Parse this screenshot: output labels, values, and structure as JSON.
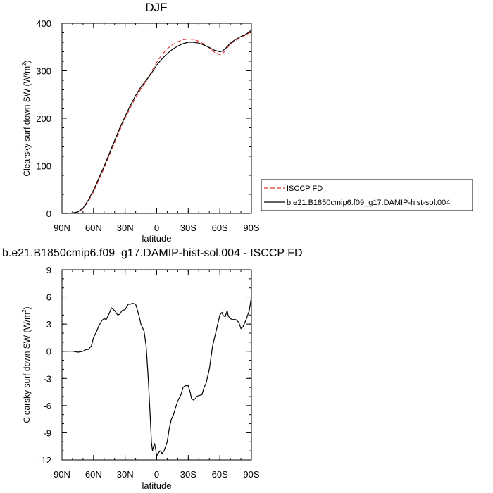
{
  "chart_data": [
    {
      "type": "line",
      "title": "DJF",
      "xlabel": "latitude",
      "ylabel": "Clearsky surf down SW (W/m",
      "ylabel_sup": "2",
      "ylabel_close": ")",
      "xlim": [
        -90,
        90
      ],
      "ylim": [
        0,
        400
      ],
      "x_ticks": [
        {
          "value": -90,
          "label": "90N"
        },
        {
          "value": -60,
          "label": "60N"
        },
        {
          "value": -30,
          "label": "30N"
        },
        {
          "value": 0,
          "label": "0"
        },
        {
          "value": 30,
          "label": "30S"
        },
        {
          "value": 60,
          "label": "60S"
        },
        {
          "value": 90,
          "label": "90S"
        }
      ],
      "y_ticks": [
        {
          "value": 0,
          "label": "0"
        },
        {
          "value": 100,
          "label": "100"
        },
        {
          "value": 200,
          "label": "200"
        },
        {
          "value": 300,
          "label": "300"
        },
        {
          "value": 400,
          "label": "400"
        }
      ],
      "grid": false,
      "legend_position": "right",
      "series": [
        {
          "name": "ISCCP FD",
          "color": "#e03030",
          "dash": true,
          "x": [
            -90,
            -85,
            -80,
            -75,
            -70,
            -65,
            -60,
            -55,
            -50,
            -45,
            -40,
            -35,
            -30,
            -25,
            -20,
            -15,
            -10,
            -5,
            0,
            5,
            10,
            15,
            20,
            25,
            30,
            35,
            40,
            45,
            50,
            55,
            60,
            62,
            65,
            70,
            75,
            80,
            85,
            88,
            90
          ],
          "y": [
            0,
            0,
            1,
            3,
            10,
            25,
            45,
            70,
            95,
            122,
            148,
            175,
            200,
            222,
            243,
            262,
            278,
            298,
            318,
            334,
            346,
            355,
            361,
            365,
            367,
            366,
            362,
            356,
            348,
            339,
            334,
            335,
            342,
            356,
            364,
            369,
            376,
            380,
            382
          ]
        },
        {
          "name": "b.e21.B1850cmip6.f09_g17.DAMIP-hist-sol.004",
          "color": "#000000",
          "dash": false,
          "x": [
            -90,
            -85,
            -80,
            -75,
            -70,
            -65,
            -60,
            -55,
            -50,
            -45,
            -40,
            -35,
            -30,
            -25,
            -20,
            -15,
            -10,
            -5,
            0,
            5,
            10,
            15,
            20,
            25,
            30,
            35,
            40,
            45,
            50,
            55,
            60,
            62,
            65,
            70,
            75,
            80,
            85,
            88,
            90
          ],
          "y": [
            0,
            0,
            1,
            3,
            11,
            28,
            49,
            74,
            99,
            126,
            153,
            180,
            204,
            227,
            248,
            266,
            280,
            295,
            312,
            325,
            336,
            345,
            352,
            357,
            360,
            360,
            358,
            354,
            349,
            343,
            340,
            341,
            346,
            358,
            366,
            372,
            377,
            382,
            386
          ]
        }
      ]
    },
    {
      "type": "line",
      "title": "b.e21.B1850cmip6.f09_g17.DAMIP-hist-sol.004 - ISCCP FD",
      "xlabel": "latitude",
      "ylabel": "Clearsky surf down SW (W/m",
      "ylabel_sup": "2",
      "ylabel_close": ")",
      "xlim": [
        -90,
        90
      ],
      "ylim": [
        -12,
        9
      ],
      "x_ticks": [
        {
          "value": -90,
          "label": "90N"
        },
        {
          "value": -60,
          "label": "60N"
        },
        {
          "value": -30,
          "label": "30N"
        },
        {
          "value": 0,
          "label": "0"
        },
        {
          "value": 30,
          "label": "30S"
        },
        {
          "value": 60,
          "label": "60S"
        },
        {
          "value": 90,
          "label": "90S"
        }
      ],
      "y_ticks": [
        {
          "value": -12,
          "label": "-12"
        },
        {
          "value": -9,
          "label": "-9"
        },
        {
          "value": -6,
          "label": "-6"
        },
        {
          "value": -3,
          "label": "-3"
        },
        {
          "value": 0,
          "label": "0"
        },
        {
          "value": 3,
          "label": "3"
        },
        {
          "value": 6,
          "label": "6"
        },
        {
          "value": 9,
          "label": "9"
        }
      ],
      "grid": false,
      "series": [
        {
          "color": "#000000",
          "dash": false,
          "x": [
            -90,
            -85,
            -80,
            -77,
            -75,
            -72,
            -70,
            -67,
            -65,
            -62,
            -60,
            -57,
            -55,
            -52,
            -50,
            -48,
            -45,
            -43,
            -40,
            -37,
            -35,
            -33,
            -30,
            -27,
            -25,
            -23,
            -20,
            -17,
            -15,
            -12,
            -10,
            -8,
            -6,
            -5,
            -4,
            -3,
            -2,
            -1,
            0,
            1,
            2,
            3,
            4,
            5,
            7,
            10,
            12,
            14,
            16,
            18,
            20,
            23,
            25,
            27,
            30,
            32,
            33,
            35,
            37,
            38,
            40,
            43,
            45,
            47,
            50,
            53,
            55,
            57,
            60,
            62,
            63,
            65,
            67,
            68,
            70,
            72,
            75,
            78,
            80,
            82,
            85,
            88,
            90
          ],
          "y": [
            0,
            0,
            0,
            -0.05,
            -0.1,
            -0.05,
            0,
            0.2,
            0.2,
            0.6,
            1.5,
            2.2,
            2.8,
            3.4,
            3.6,
            3.5,
            4.2,
            4.8,
            4.5,
            4.0,
            4.1,
            4.5,
            4.6,
            5.2,
            5.2,
            5.3,
            5.2,
            4.0,
            3.0,
            2.2,
            0.5,
            -3,
            -7.5,
            -10,
            -11,
            -10.5,
            -10.2,
            -10.8,
            -11.6,
            -11.3,
            -11.2,
            -11.0,
            -11.1,
            -11.3,
            -11.0,
            -10.0,
            -8.5,
            -7.5,
            -7.0,
            -6.2,
            -5.5,
            -4.8,
            -4.0,
            -3.8,
            -3.8,
            -4.6,
            -5.2,
            -5.4,
            -5.2,
            -5.0,
            -4.9,
            -4.8,
            -4.0,
            -3.5,
            -2.0,
            0.5,
            1.5,
            2.5,
            4.0,
            4.3,
            4.0,
            3.8,
            4.5,
            3.9,
            3.6,
            3.5,
            3.5,
            3.2,
            2.5,
            2.7,
            3.5,
            4.5,
            6.0
          ]
        }
      ]
    }
  ]
}
